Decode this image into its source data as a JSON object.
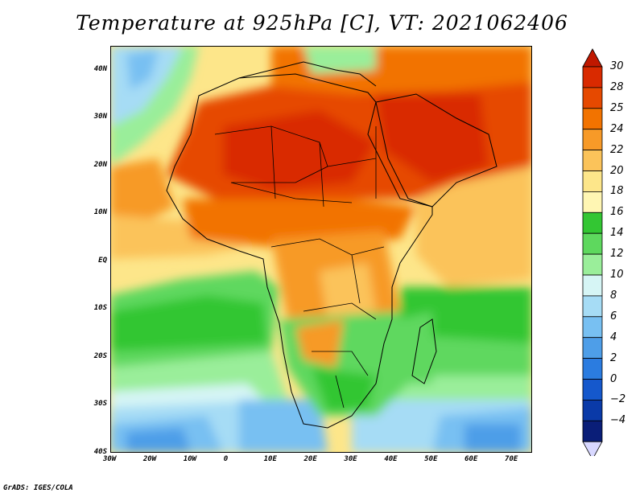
{
  "title": "Temperature at 925hPa [C], VT: 2021062406",
  "footer": "GrADS: IGES/COLA",
  "lat_ticks": [
    {
      "label": "40N",
      "value": 40
    },
    {
      "label": "30N",
      "value": 30
    },
    {
      "label": "20N",
      "value": 20
    },
    {
      "label": "10N",
      "value": 10
    },
    {
      "label": "EQ",
      "value": 0
    },
    {
      "label": "10S",
      "value": -10
    },
    {
      "label": "20S",
      "value": -20
    },
    {
      "label": "30S",
      "value": -30
    },
    {
      "label": "40S",
      "value": -40
    }
  ],
  "lon_ticks": [
    {
      "label": "30W",
      "value": -30
    },
    {
      "label": "20W",
      "value": -20
    },
    {
      "label": "10W",
      "value": -10
    },
    {
      "label": "0",
      "value": 0
    },
    {
      "label": "10E",
      "value": 10
    },
    {
      "label": "20E",
      "value": 20
    },
    {
      "label": "30E",
      "value": 30
    },
    {
      "label": "40E",
      "value": 40
    },
    {
      "label": "50E",
      "value": 50
    },
    {
      "label": "60E",
      "value": 60
    },
    {
      "label": "70E",
      "value": 70
    }
  ],
  "extent": {
    "lon_min": -30,
    "lon_max": 75,
    "lat_min": -40,
    "lat_max": 45
  },
  "colorbar": {
    "levels": [
      {
        "label": "30",
        "color": "#d92a00"
      },
      {
        "label": "28",
        "color": "#e64900"
      },
      {
        "label": "25",
        "color": "#f27300"
      },
      {
        "label": "24",
        "color": "#f79a28"
      },
      {
        "label": "22",
        "color": "#fbc35a"
      },
      {
        "label": "20",
        "color": "#fde68a"
      },
      {
        "label": "18",
        "color": "#fff6b3"
      },
      {
        "label": "16",
        "color": "#33c633"
      },
      {
        "label": "14",
        "color": "#5ed85e"
      },
      {
        "label": "12",
        "color": "#9aee9a"
      },
      {
        "label": "10",
        "color": "#d6f5f5"
      },
      {
        "label": "8",
        "color": "#a6dcf5"
      },
      {
        "label": "6",
        "color": "#78c0f2"
      },
      {
        "label": "4",
        "color": "#4e9ee8"
      },
      {
        "label": "2",
        "color": "#2b7ce0"
      },
      {
        "label": "0",
        "color": "#1558cc"
      },
      {
        "label": "−2",
        "color": "#0a3aa8"
      },
      {
        "label": "−4",
        "color": "#0a1e78"
      }
    ],
    "top_color": "#c01800",
    "bottom_color": "#d8d8ff"
  }
}
